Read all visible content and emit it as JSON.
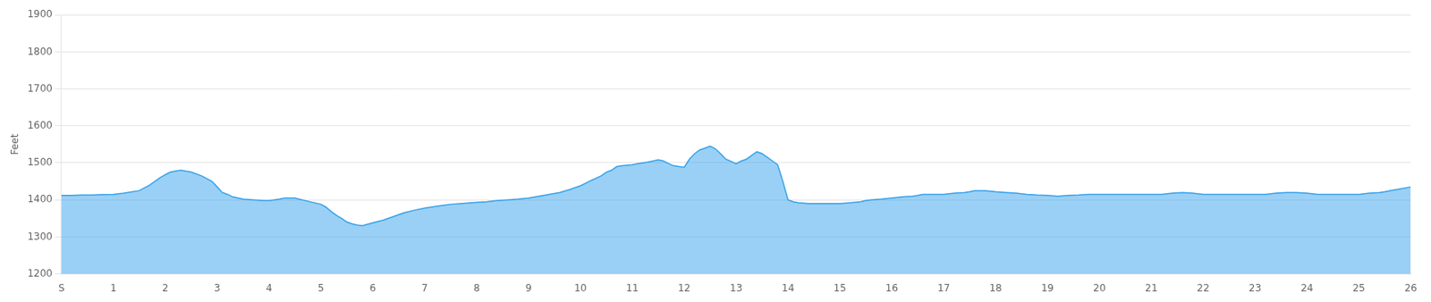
{
  "chart_data": {
    "type": "area",
    "ylabel": "Feet",
    "xlim": [
      0,
      26
    ],
    "xticks": [
      {
        "value": 0,
        "label": "S"
      },
      1,
      2,
      3,
      4,
      5,
      6,
      7,
      8,
      9,
      10,
      11,
      12,
      13,
      14,
      15,
      16,
      17,
      18,
      19,
      20,
      21,
      22,
      23,
      24,
      25,
      26
    ],
    "ylim": [
      1200,
      1900
    ],
    "yticks": [
      1200,
      1300,
      1400,
      1500,
      1600,
      1700,
      1800,
      1900
    ],
    "grid": "y",
    "x": [
      0.0,
      0.2,
      0.4,
      0.6,
      0.8,
      1.0,
      1.2,
      1.5,
      1.7,
      1.9,
      2.0,
      2.1,
      2.2,
      2.3,
      2.5,
      2.7,
      2.9,
      3.0,
      3.1,
      3.2,
      3.3,
      3.5,
      3.7,
      3.9,
      4.0,
      4.1,
      4.2,
      4.3,
      4.5,
      4.7,
      5.0,
      5.1,
      5.2,
      5.3,
      5.4,
      5.5,
      5.6,
      5.7,
      5.8,
      6.0,
      6.2,
      6.4,
      6.5,
      6.6,
      6.8,
      7.0,
      7.2,
      7.4,
      7.5,
      7.7,
      7.9,
      8.0,
      8.2,
      8.4,
      8.6,
      8.8,
      9.0,
      9.2,
      9.4,
      9.6,
      9.8,
      10.0,
      10.1,
      10.2,
      10.4,
      10.5,
      10.6,
      10.7,
      10.8,
      11.0,
      11.1,
      11.2,
      11.3,
      11.4,
      11.5,
      11.6,
      11.7,
      11.8,
      12.0,
      12.1,
      12.2,
      12.3,
      12.4,
      12.5,
      12.6,
      12.7,
      12.8,
      13.0,
      13.1,
      13.2,
      13.3,
      13.4,
      13.5,
      13.6,
      13.7,
      13.8,
      13.9,
      14.0,
      14.1,
      14.2,
      14.4,
      14.6,
      14.8,
      15.0,
      15.2,
      15.4,
      15.5,
      15.6,
      15.8,
      16.0,
      16.2,
      16.4,
      16.5,
      16.6,
      16.8,
      17.0,
      17.2,
      17.4,
      17.5,
      17.6,
      17.8,
      18.0,
      18.2,
      18.4,
      18.6,
      18.8,
      19.0,
      19.2,
      19.4,
      19.6,
      19.8,
      20.0,
      20.2,
      20.4,
      20.6,
      20.8,
      21.0,
      21.2,
      21.4,
      21.6,
      21.8,
      22.0,
      22.2,
      22.4,
      22.6,
      22.8,
      23.0,
      23.2,
      23.4,
      23.6,
      23.8,
      24.0,
      24.2,
      24.4,
      24.6,
      24.8,
      25.0,
      25.2,
      25.4,
      25.5,
      25.6,
      25.8,
      26.0
    ],
    "values": [
      1412,
      1412,
      1413,
      1413,
      1414,
      1415,
      1418,
      1425,
      1440,
      1460,
      1468,
      1475,
      1478,
      1480,
      1475,
      1465,
      1450,
      1435,
      1420,
      1415,
      1408,
      1402,
      1400,
      1398,
      1398,
      1400,
      1402,
      1405,
      1405,
      1398,
      1388,
      1380,
      1368,
      1358,
      1350,
      1340,
      1335,
      1332,
      1330,
      1338,
      1345,
      1355,
      1360,
      1365,
      1372,
      1378,
      1382,
      1386,
      1388,
      1390,
      1392,
      1393,
      1395,
      1398,
      1400,
      1402,
      1405,
      1410,
      1415,
      1420,
      1428,
      1438,
      1445,
      1452,
      1465,
      1475,
      1480,
      1490,
      1492,
      1495,
      1498,
      1500,
      1502,
      1505,
      1508,
      1505,
      1498,
      1492,
      1488,
      1510,
      1525,
      1535,
      1540,
      1545,
      1538,
      1525,
      1510,
      1498,
      1505,
      1510,
      1520,
      1530,
      1525,
      1515,
      1505,
      1495,
      1450,
      1400,
      1395,
      1392,
      1390,
      1390,
      1390,
      1390,
      1392,
      1395,
      1398,
      1400,
      1402,
      1405,
      1408,
      1410,
      1412,
      1415,
      1415,
      1415,
      1418,
      1420,
      1422,
      1425,
      1425,
      1422,
      1420,
      1418,
      1415,
      1413,
      1412,
      1410,
      1412,
      1413,
      1415,
      1415,
      1415,
      1415,
      1415,
      1415,
      1415,
      1415,
      1418,
      1420,
      1418,
      1415,
      1415,
      1415,
      1415,
      1415,
      1415,
      1415,
      1418,
      1420,
      1420,
      1418,
      1415,
      1415,
      1415,
      1415,
      1415,
      1418,
      1420,
      1422,
      1425,
      1430,
      1435
    ]
  }
}
